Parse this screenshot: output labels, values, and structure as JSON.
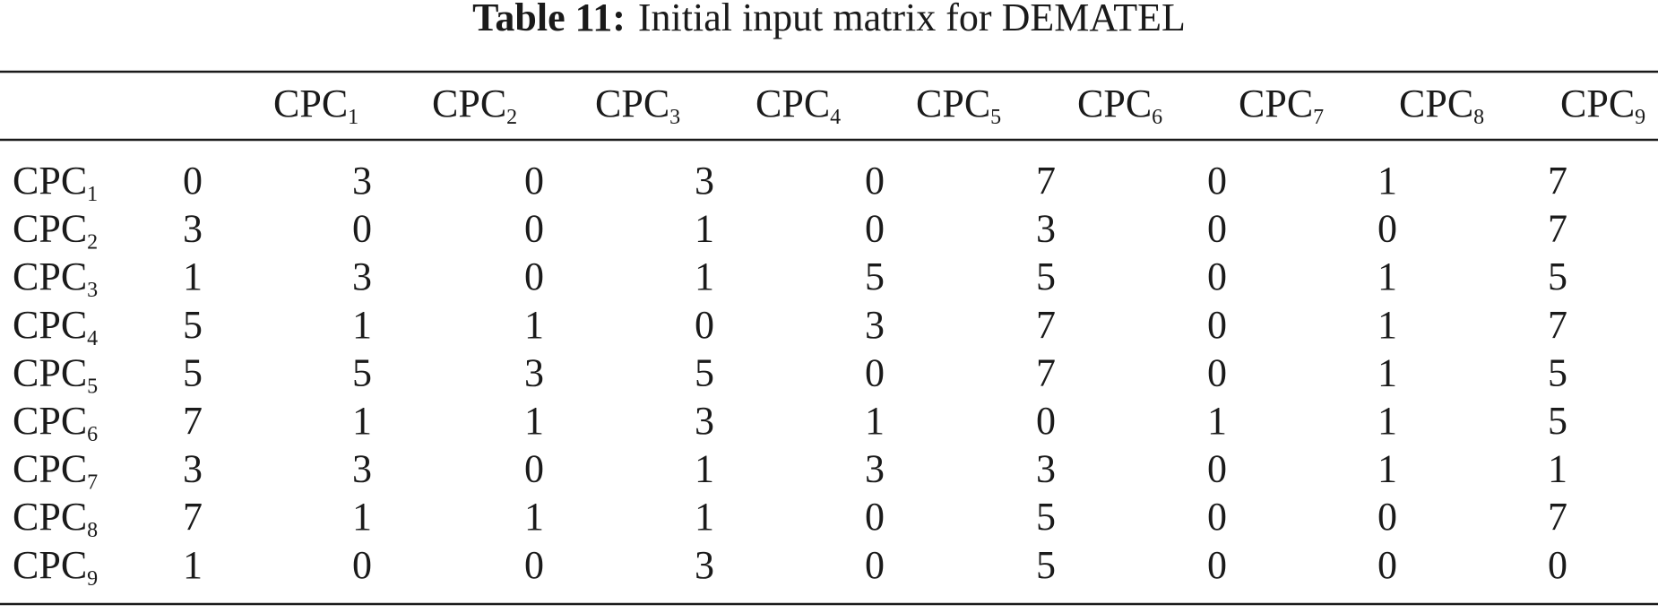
{
  "title": {
    "label": "Table 11:",
    "text": "Initial input matrix for DEMATEL"
  },
  "table": {
    "columns": [
      {
        "base": "CPC",
        "sub": "1"
      },
      {
        "base": "CPC",
        "sub": "2"
      },
      {
        "base": "CPC",
        "sub": "3"
      },
      {
        "base": "CPC",
        "sub": "4"
      },
      {
        "base": "CPC",
        "sub": "5"
      },
      {
        "base": "CPC",
        "sub": "6"
      },
      {
        "base": "CPC",
        "sub": "7"
      },
      {
        "base": "CPC",
        "sub": "8"
      },
      {
        "base": "CPC",
        "sub": "9"
      }
    ],
    "rows": [
      {
        "label": {
          "base": "CPC",
          "sub": "1"
        },
        "cells": [
          0,
          3,
          0,
          3,
          0,
          7,
          0,
          1,
          7
        ]
      },
      {
        "label": {
          "base": "CPC",
          "sub": "2"
        },
        "cells": [
          3,
          0,
          0,
          1,
          0,
          3,
          0,
          0,
          7
        ]
      },
      {
        "label": {
          "base": "CPC",
          "sub": "3"
        },
        "cells": [
          1,
          3,
          0,
          1,
          5,
          5,
          0,
          1,
          5
        ]
      },
      {
        "label": {
          "base": "CPC",
          "sub": "4"
        },
        "cells": [
          5,
          1,
          1,
          0,
          3,
          7,
          0,
          1,
          7
        ]
      },
      {
        "label": {
          "base": "CPC",
          "sub": "5"
        },
        "cells": [
          5,
          5,
          3,
          5,
          0,
          7,
          0,
          1,
          5
        ]
      },
      {
        "label": {
          "base": "CPC",
          "sub": "6"
        },
        "cells": [
          7,
          1,
          1,
          3,
          1,
          0,
          1,
          1,
          5
        ]
      },
      {
        "label": {
          "base": "CPC",
          "sub": "7"
        },
        "cells": [
          3,
          3,
          0,
          1,
          3,
          3,
          0,
          1,
          1
        ]
      },
      {
        "label": {
          "base": "CPC",
          "sub": "8"
        },
        "cells": [
          7,
          1,
          1,
          1,
          0,
          5,
          0,
          0,
          7
        ]
      },
      {
        "label": {
          "base": "CPC",
          "sub": "9"
        },
        "cells": [
          1,
          0,
          0,
          3,
          0,
          5,
          0,
          0,
          0
        ]
      }
    ]
  }
}
